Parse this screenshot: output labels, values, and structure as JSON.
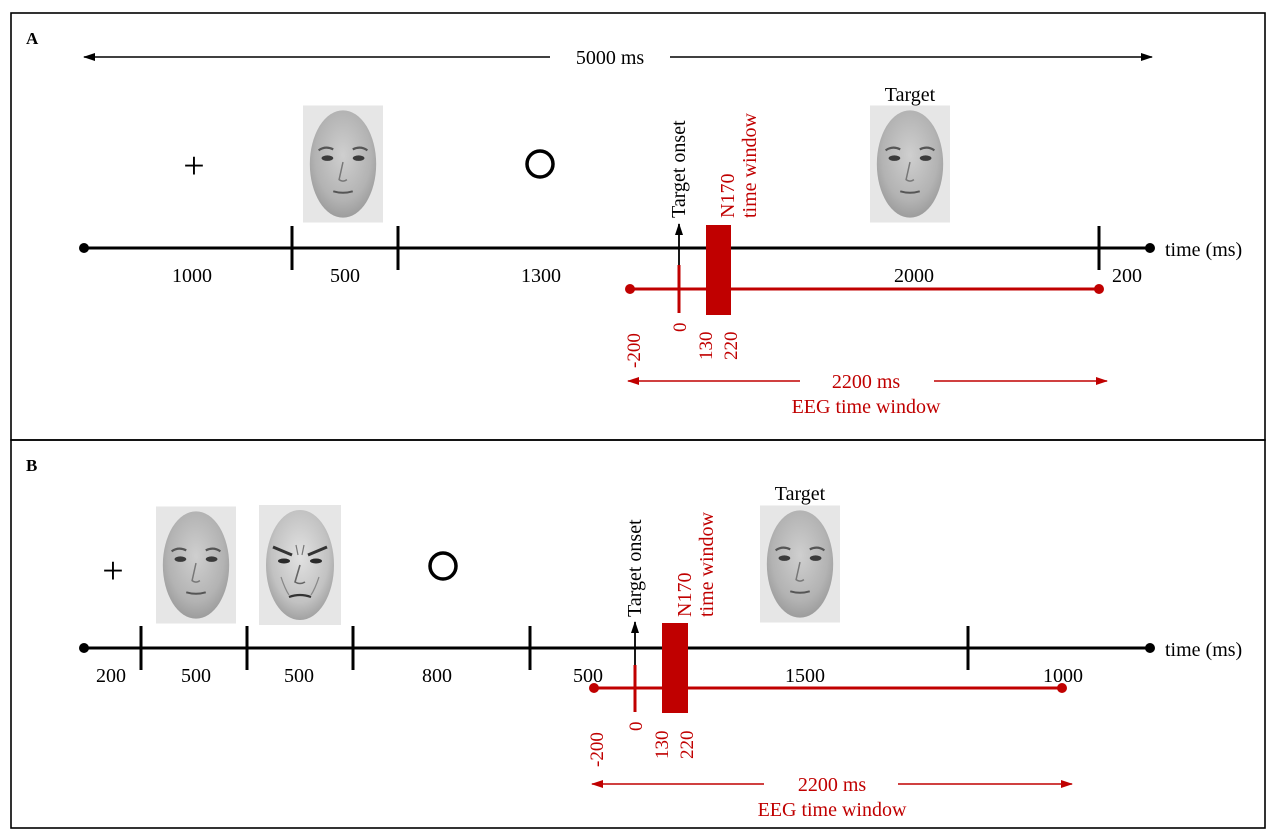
{
  "colors": {
    "black": "#000000",
    "red": "#c00000",
    "photo_bg": "#e6e6e6"
  },
  "panels": [
    {
      "label": "A",
      "total_duration": "5000 ms",
      "fixation": "+",
      "segments": [
        "1000",
        "500",
        "1300",
        "2000",
        "200"
      ],
      "target_onset": "Target onset",
      "n170_label": "N170",
      "n170_sub": "time window",
      "target_label": "Target",
      "axis_label": "time  (ms)",
      "eeg_ticks": [
        "-200",
        "0",
        "130",
        "220"
      ],
      "eeg_duration": "2200 ms",
      "eeg_label": "EEG  time  window"
    },
    {
      "label": "B",
      "fixation": "+",
      "segments": [
        "200",
        "500",
        "500",
        "800",
        "500",
        "1500",
        "1000"
      ],
      "target_onset": "Target onset",
      "n170_label": "N170",
      "n170_sub": "time window",
      "target_label": "Target",
      "axis_label": "time  (ms)",
      "eeg_ticks": [
        "-200",
        "0",
        "130",
        "220"
      ],
      "eeg_duration": "2200 ms",
      "eeg_label": "EEG  time  window"
    }
  ]
}
